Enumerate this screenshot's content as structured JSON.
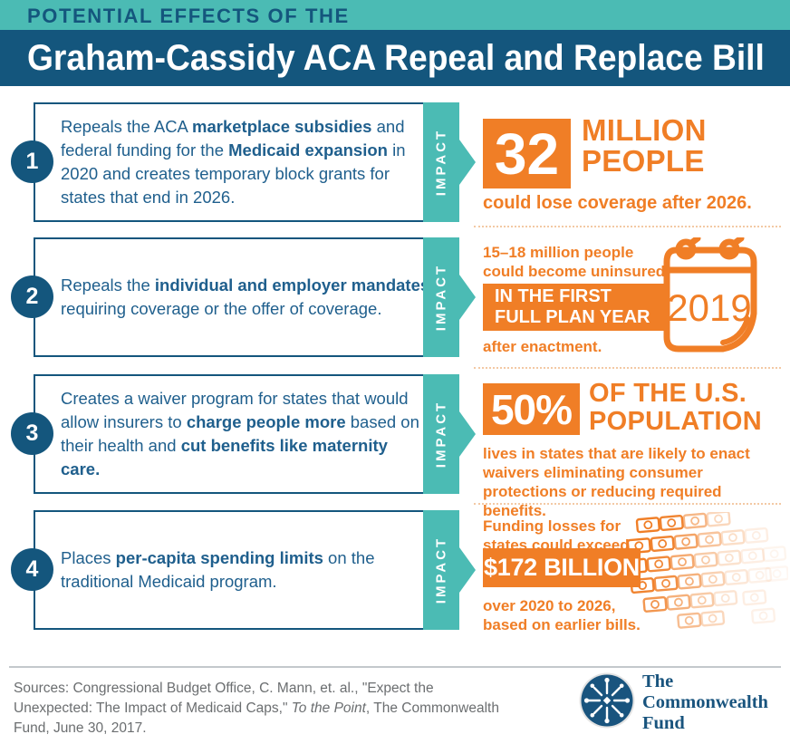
{
  "colors": {
    "teal": "#4BBBB4",
    "navy": "#14567D",
    "orange": "#F07E26"
  },
  "header": {
    "kicker": "POTENTIAL EFFECTS OF THE",
    "title": "Graham-Cassidy ACA Repeal and Replace Bill"
  },
  "rows": [
    {
      "number": "1",
      "impact_label": "IMPACT",
      "description": [
        {
          "t": "Repeals the ACA "
        },
        {
          "t": "marketplace subsidies",
          "b": true
        },
        {
          "t": " and federal funding for the "
        },
        {
          "t": "Medicaid expansion",
          "b": true
        },
        {
          "t": " in 2020 and creates temporary block grants for states that end in 2026."
        }
      ],
      "impact": {
        "stat_box": "32",
        "headline_lines": [
          "MILLION",
          "PEOPLE"
        ],
        "caption": "could lose coverage after 2026."
      }
    },
    {
      "number": "2",
      "impact_label": "IMPACT",
      "description": [
        {
          "t": "Repeals the "
        },
        {
          "t": "individual and employer mandates",
          "b": true
        },
        {
          "t": " requiring coverage or the offer of coverage."
        }
      ],
      "impact": {
        "lead_lines": [
          "15–18 million people",
          "could become uninsured"
        ],
        "box_lines": [
          "IN THE FIRST",
          "FULL PLAN YEAR"
        ],
        "tail": "after enactment.",
        "calendar_year": "2019"
      }
    },
    {
      "number": "3",
      "impact_label": "IMPACT",
      "description": [
        {
          "t": "Creates a waiver program for states that would allow insurers to "
        },
        {
          "t": "charge people more",
          "b": true
        },
        {
          "t": " based on their health and "
        },
        {
          "t": "cut benefits like maternity care.",
          "b": true
        }
      ],
      "impact": {
        "stat_box": "50%",
        "headline_lines": [
          "OF THE U.S.",
          "POPULATION"
        ],
        "caption": "lives in states that are likely to enact waivers eliminating consumer protections or reducing required benefits."
      }
    },
    {
      "number": "4",
      "impact_label": "IMPACT",
      "description": [
        {
          "t": "Places "
        },
        {
          "t": "per-capita spending limits",
          "b": true
        },
        {
          "t": " on the traditional Medicaid program."
        }
      ],
      "impact": {
        "lead_lines": [
          "Funding losses for",
          "states could exceed"
        ],
        "box": "$172 BILLION",
        "tail_lines": [
          "over 2020 to 2026,",
          "based on earlier bills."
        ]
      }
    }
  ],
  "footer": {
    "sources": [
      {
        "t": "Sources:  Congressional Budget Office, C. Mann, et. al., \"Expect the Unexpected: The Impact of Medicaid Caps,\" "
      },
      {
        "t": "To the Point",
        "i": true
      },
      {
        "t": ", The Commonwealth Fund, June 30, 2017."
      }
    ],
    "logo_lines": [
      "The",
      "Commonwealth",
      "Fund"
    ]
  }
}
